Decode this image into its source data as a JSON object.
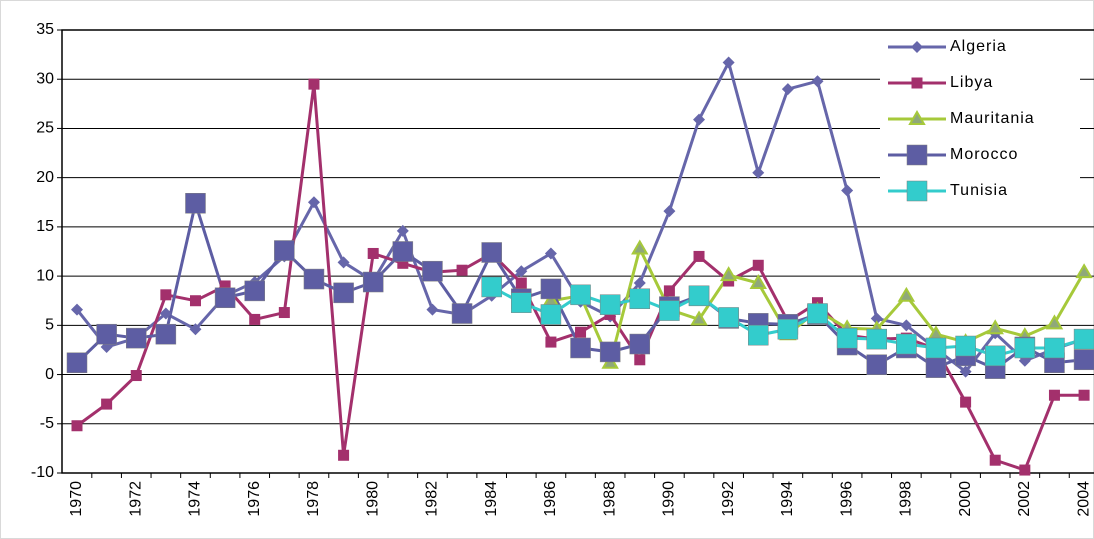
{
  "chart_data": {
    "type": "line",
    "categories": [
      "1970",
      null,
      "1972",
      null,
      "1974",
      null,
      "1976",
      null,
      "1978",
      null,
      "1980",
      null,
      "1982",
      null,
      "1984",
      null,
      "1986",
      null,
      "1988",
      null,
      "1990",
      null,
      "1992",
      null,
      "1994",
      null,
      "1996",
      null,
      "1998",
      null,
      "2000",
      null,
      "2002",
      null,
      "2004"
    ],
    "series": [
      {
        "name": "Algeria",
        "color": "#6666aa",
        "marker": "diamond",
        "values": [
          6.6,
          2.8,
          3.7,
          6.2,
          4.6,
          8.0,
          9.4,
          12.0,
          17.5,
          11.4,
          9.5,
          14.6,
          6.6,
          6.1,
          8.0,
          10.5,
          12.3,
          7.4,
          5.9,
          9.3,
          16.6,
          25.9,
          31.7,
          20.5,
          29.0,
          29.8,
          18.7,
          5.7,
          5.0,
          2.6,
          0.3,
          4.2,
          1.4,
          2.6,
          3.6
        ]
      },
      {
        "name": "Libya",
        "color": "#a3306c",
        "marker": "square",
        "values": [
          -5.2,
          -3.0,
          -0.1,
          8.1,
          7.5,
          9.0,
          5.6,
          6.3,
          29.5,
          -8.2,
          12.3,
          11.3,
          10.4,
          10.6,
          12.3,
          9.3,
          3.3,
          4.3,
          6.1,
          1.5,
          8.5,
          12.0,
          9.5,
          11.1,
          5.4,
          7.3,
          4.0,
          3.6,
          3.7,
          2.6,
          -2.8,
          -8.7,
          -9.7,
          -2.1,
          -2.1
        ]
      },
      {
        "name": "Mauritania",
        "color": "#a6c93a",
        "marker": "triangle",
        "values": [
          null,
          null,
          null,
          null,
          null,
          null,
          null,
          null,
          null,
          null,
          null,
          null,
          null,
          null,
          null,
          null,
          7.5,
          8.0,
          1.2,
          12.8,
          6.6,
          5.6,
          10.1,
          9.3,
          4.1,
          6.5,
          4.7,
          4.6,
          8.0,
          4.1,
          3.3,
          4.7,
          3.9,
          5.2,
          10.4
        ]
      },
      {
        "name": "Morocco",
        "color": "#5d5da3",
        "marker": "bigsquare",
        "values": [
          1.2,
          4.1,
          3.7,
          4.1,
          17.4,
          7.8,
          8.5,
          12.6,
          9.7,
          8.3,
          9.4,
          12.5,
          10.5,
          6.2,
          12.4,
          7.7,
          8.7,
          2.7,
          2.3,
          3.1,
          6.9,
          8.0,
          5.7,
          5.2,
          5.1,
          6.1,
          3.0,
          1.0,
          2.7,
          0.7,
          1.9,
          0.6,
          2.8,
          1.2,
          1.5
        ]
      },
      {
        "name": "Tunisia",
        "color": "#33cccc",
        "marker": "bigsquare",
        "values": [
          null,
          null,
          null,
          null,
          null,
          null,
          null,
          null,
          null,
          null,
          null,
          null,
          null,
          null,
          8.9,
          7.3,
          6.1,
          8.1,
          7.1,
          7.7,
          6.5,
          8.0,
          5.8,
          4.0,
          4.6,
          6.2,
          3.7,
          3.6,
          3.1,
          2.7,
          2.9,
          1.9,
          2.7,
          2.7,
          3.6
        ]
      }
    ],
    "ylim": [
      -10,
      35
    ],
    "yticks": [
      -10,
      -5,
      0,
      5,
      10,
      15,
      20,
      25,
      30,
      35
    ],
    "grid": true,
    "legend": "top-right"
  }
}
